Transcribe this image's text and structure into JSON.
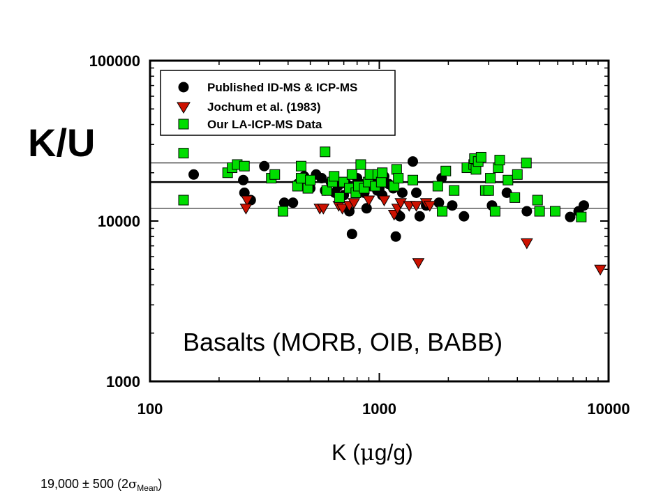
{
  "chart_data": {
    "type": "scatter",
    "title": "",
    "ylabel": "K/U",
    "xlabel_prefix": "K (",
    "xlabel_mu": "m",
    "xlabel_suffix": "g/g)",
    "x_scale": "log",
    "y_scale": "log",
    "xlim": [
      100,
      10000
    ],
    "ylim": [
      1000,
      100000
    ],
    "x_ticks": [
      {
        "value": 100,
        "label": "100"
      },
      {
        "value": 1000,
        "label": "1000"
      },
      {
        "value": 10000,
        "label": "10000"
      }
    ],
    "y_ticks": [
      {
        "value": 1000,
        "label": "1000"
      },
      {
        "value": 10000,
        "label": "10000"
      },
      {
        "value": 100000,
        "label": "100000"
      }
    ],
    "grid": false,
    "legend_position": "top-left",
    "annotation": "Basalts (MORB, OIB, BABB)",
    "footnote": {
      "main": "19,000 ± 500 (2",
      "sigma": "s",
      "sub": "Mean",
      "close": ")"
    },
    "reference_lines": [
      {
        "y": 23000,
        "style": "thin"
      },
      {
        "y": 17500,
        "style": "thick"
      },
      {
        "y": 12000,
        "style": "thin"
      }
    ],
    "series": [
      {
        "name": "Published ID-MS & ICP-MS",
        "marker": "circle",
        "color": "#000000",
        "points": [
          [
            155,
            19500
          ],
          [
            255,
            18000
          ],
          [
            258,
            15000
          ],
          [
            275,
            13500
          ],
          [
            315,
            22000
          ],
          [
            385,
            13000
          ],
          [
            420,
            13000
          ],
          [
            440,
            17000
          ],
          [
            470,
            19000
          ],
          [
            500,
            16000
          ],
          [
            530,
            19500
          ],
          [
            560,
            18500
          ],
          [
            580,
            15500
          ],
          [
            615,
            17500
          ],
          [
            640,
            15000
          ],
          [
            660,
            16500
          ],
          [
            700,
            14500
          ],
          [
            720,
            17000
          ],
          [
            740,
            11500
          ],
          [
            760,
            8300
          ],
          [
            780,
            16000
          ],
          [
            800,
            18500
          ],
          [
            830,
            17000
          ],
          [
            860,
            15000
          ],
          [
            880,
            12000
          ],
          [
            900,
            16500
          ],
          [
            940,
            17500
          ],
          [
            980,
            15500
          ],
          [
            1000,
            16000
          ],
          [
            1030,
            14500
          ],
          [
            1050,
            19000
          ],
          [
            1100,
            17000
          ],
          [
            1150,
            16000
          ],
          [
            1180,
            8000
          ],
          [
            1200,
            11000
          ],
          [
            1230,
            10700
          ],
          [
            1260,
            15000
          ],
          [
            1400,
            23500
          ],
          [
            1450,
            15000
          ],
          [
            1500,
            10700
          ],
          [
            1600,
            12500
          ],
          [
            1820,
            13000
          ],
          [
            1870,
            18500
          ],
          [
            2080,
            12500
          ],
          [
            2340,
            10700
          ],
          [
            3100,
            12500
          ],
          [
            3600,
            15000
          ],
          [
            4400,
            11500
          ],
          [
            6800,
            10600
          ],
          [
            7400,
            11500
          ],
          [
            7800,
            12500
          ]
        ]
      },
      {
        "name": "Jochum et al. (1983)",
        "marker": "triangle-down",
        "color": "#cc1100",
        "points": [
          [
            265,
            13500
          ],
          [
            262,
            12000
          ],
          [
            550,
            12000
          ],
          [
            570,
            12000
          ],
          [
            665,
            12500
          ],
          [
            690,
            12000
          ],
          [
            740,
            12500
          ],
          [
            775,
            13000
          ],
          [
            900,
            13500
          ],
          [
            1050,
            13500
          ],
          [
            1160,
            11000
          ],
          [
            1200,
            12000
          ],
          [
            1240,
            13000
          ],
          [
            1350,
            12500
          ],
          [
            1450,
            12500
          ],
          [
            1480,
            5500
          ],
          [
            1600,
            13000
          ],
          [
            1660,
            12500
          ],
          [
            4400,
            7300
          ],
          [
            9200,
            5000
          ]
        ]
      },
      {
        "name": "Our LA-ICP-MS Data",
        "marker": "square",
        "color": "#00dd00",
        "points": [
          [
            140,
            26500
          ],
          [
            140,
            13500
          ],
          [
            218,
            20000
          ],
          [
            228,
            21500
          ],
          [
            240,
            22500
          ],
          [
            258,
            22000
          ],
          [
            338,
            18500
          ],
          [
            350,
            19500
          ],
          [
            380,
            11500
          ],
          [
            440,
            16500
          ],
          [
            456,
            22000
          ],
          [
            456,
            18500
          ],
          [
            488,
            16000
          ],
          [
            500,
            18000
          ],
          [
            580,
            27000
          ],
          [
            590,
            15500
          ],
          [
            625,
            17500
          ],
          [
            635,
            19000
          ],
          [
            670,
            14000
          ],
          [
            700,
            17500
          ],
          [
            740,
            16000
          ],
          [
            760,
            19500
          ],
          [
            790,
            15000
          ],
          [
            810,
            16500
          ],
          [
            830,
            22500
          ],
          [
            860,
            16000
          ],
          [
            895,
            17500
          ],
          [
            910,
            19500
          ],
          [
            960,
            16500
          ],
          [
            985,
            19500
          ],
          [
            1020,
            17500
          ],
          [
            1030,
            20000
          ],
          [
            1160,
            16500
          ],
          [
            1190,
            21000
          ],
          [
            1210,
            18500
          ],
          [
            1400,
            18000
          ],
          [
            1800,
            16500
          ],
          [
            1880,
            11500
          ],
          [
            1950,
            20500
          ],
          [
            2120,
            15500
          ],
          [
            2410,
            21500
          ],
          [
            2580,
            22500
          ],
          [
            2600,
            24500
          ],
          [
            2640,
            21000
          ],
          [
            2700,
            23500
          ],
          [
            2780,
            25000
          ],
          [
            2900,
            15500
          ],
          [
            3000,
            15500
          ],
          [
            3050,
            18500
          ],
          [
            3200,
            11500
          ],
          [
            3300,
            21500
          ],
          [
            3350,
            24000
          ],
          [
            3640,
            18000
          ],
          [
            3900,
            14000
          ],
          [
            4000,
            19500
          ],
          [
            4380,
            23000
          ],
          [
            4900,
            13500
          ],
          [
            5000,
            11500
          ],
          [
            5850,
            11500
          ],
          [
            7600,
            10600
          ]
        ]
      }
    ]
  }
}
